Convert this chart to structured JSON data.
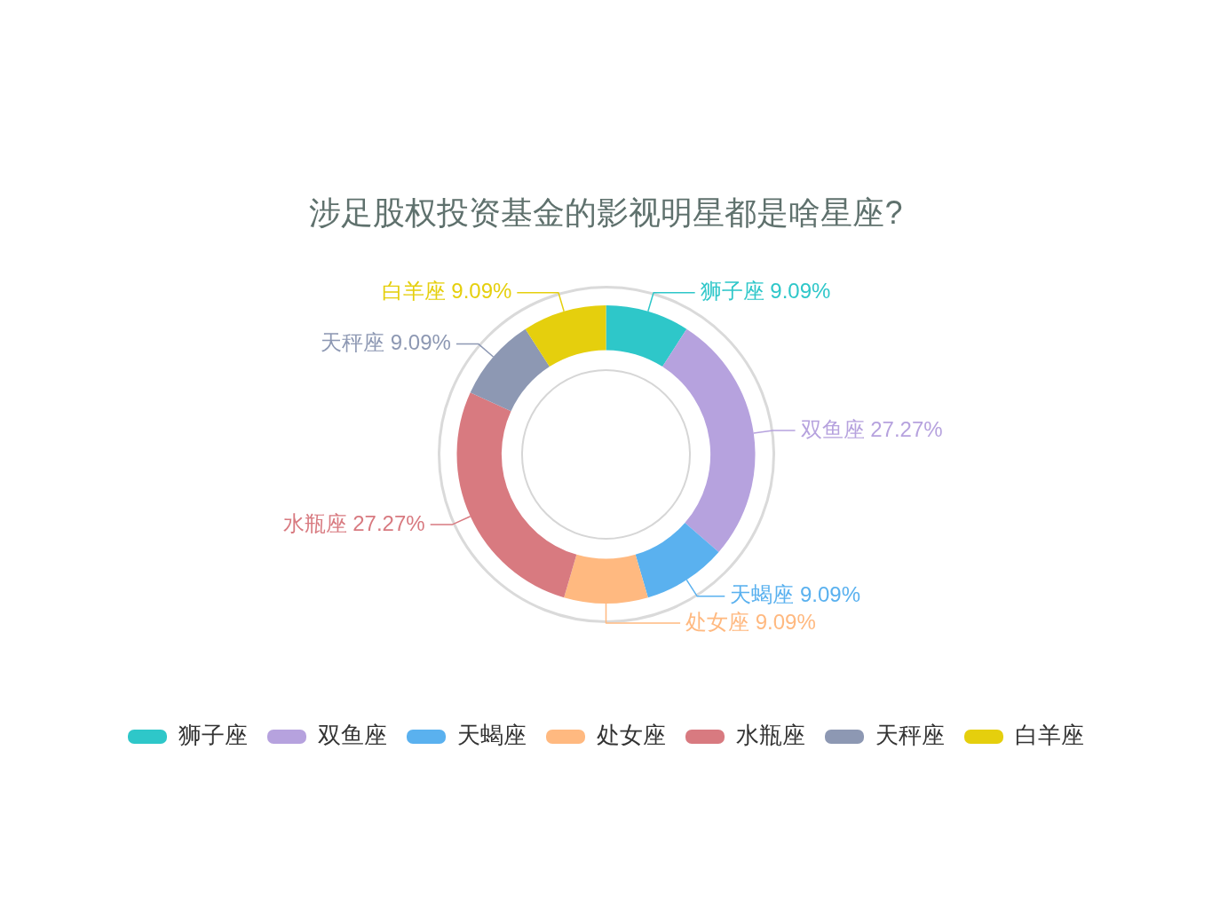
{
  "chart_data": {
    "type": "donut",
    "title": "涉足股权投资基金的影视明星都是啥星座?",
    "categories": [
      "狮子座",
      "双鱼座",
      "天蝎座",
      "处女座",
      "水瓶座",
      "天秤座",
      "白羊座"
    ],
    "values": [
      9.09,
      27.27,
      9.09,
      9.09,
      27.27,
      9.09,
      9.09
    ],
    "colors": [
      "#2ec7c9",
      "#b6a2de",
      "#5ab1ef",
      "#ffb980",
      "#d87a80",
      "#8d98b3",
      "#e5cf0d"
    ],
    "value_labels": [
      "狮子座 9.09%",
      "双鱼座 27.27%",
      "天蝎座 9.09%",
      "处女座 9.09%",
      "水瓶座 27.27%",
      "天秤座 9.09%",
      "白羊座 9.09%"
    ],
    "legend": "bottom"
  }
}
